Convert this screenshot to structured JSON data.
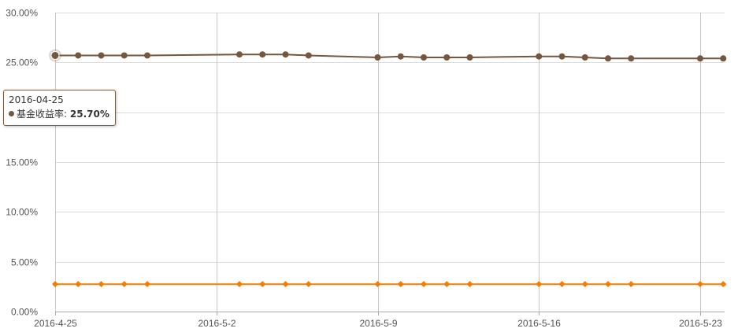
{
  "chart_data": {
    "type": "line",
    "x": [
      "2016-04-25",
      "2016-04-26",
      "2016-04-27",
      "2016-04-28",
      "2016-04-29",
      "2016-05-03",
      "2016-05-04",
      "2016-05-05",
      "2016-05-06",
      "2016-05-09",
      "2016-05-10",
      "2016-05-11",
      "2016-05-12",
      "2016-05-13",
      "2016-05-16",
      "2016-05-17",
      "2016-05-18",
      "2016-05-19",
      "2016-05-20",
      "2016-05-23",
      "2016-05-24"
    ],
    "series": [
      {
        "name": "基金收益率",
        "color": "#75563f",
        "marker": "circle",
        "values": [
          25.7,
          25.7,
          25.7,
          25.7,
          25.7,
          25.8,
          25.8,
          25.8,
          25.7,
          25.5,
          25.6,
          25.5,
          25.5,
          25.5,
          25.6,
          25.6,
          25.5,
          25.4,
          25.4,
          25.4,
          25.4
        ]
      },
      {
        "name": "",
        "color": "#f57c00",
        "marker": "diamond",
        "values": [
          2.75,
          2.75,
          2.75,
          2.75,
          2.75,
          2.75,
          2.75,
          2.75,
          2.75,
          2.75,
          2.75,
          2.75,
          2.75,
          2.75,
          2.75,
          2.75,
          2.75,
          2.75,
          2.75,
          2.75,
          2.75
        ]
      }
    ],
    "ylim": [
      0,
      30
    ],
    "yticks": [
      0,
      5,
      10,
      15,
      20,
      25,
      30
    ],
    "ytick_labels": [
      "0.00%",
      "5.00%",
      "10.00%",
      "15.00%",
      "20.00%",
      "25.00%",
      "30.00%"
    ],
    "xlim": [
      "2016-04-25",
      "2016-05-24"
    ],
    "xticks": [
      "2016-04-25",
      "2016-05-02",
      "2016-05-09",
      "2016-05-16",
      "2016-05-23"
    ],
    "xtick_labels": [
      "2016-4-25",
      "2016-5-2",
      "2016-5-9",
      "2016-5-16",
      "2016-5-23"
    ],
    "grid": true,
    "title": "",
    "xlabel": "",
    "ylabel": ""
  },
  "tooltip": {
    "date": "2016-04-25",
    "series_name": "基金收益率",
    "separator": ":",
    "value": "25.70%",
    "dot_color": "#75563f"
  },
  "colors": {
    "grid_h": "#dcdcdc",
    "grid_v": "#c8c8c8",
    "axis": "#aaaaaa",
    "tick_text": "#555555"
  }
}
